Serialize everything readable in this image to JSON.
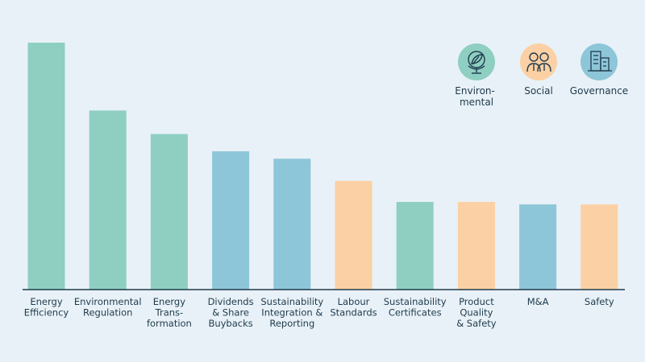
{
  "chart_data": {
    "type": "bar",
    "categories": [
      [
        "Energy",
        "Efficiency"
      ],
      [
        "Environmental",
        "Regulation"
      ],
      [
        "Energy",
        "Trans-",
        "formation"
      ],
      [
        "Dividends",
        "& Share",
        "Buybacks"
      ],
      [
        "Sustainability",
        "Integration &",
        "Reporting"
      ],
      [
        "Labour",
        "Standards"
      ],
      [
        "Sustainability",
        "Certificates"
      ],
      [
        "Product",
        "Quality",
        "& Safety"
      ],
      [
        "M&A"
      ],
      [
        "Safety"
      ]
    ],
    "values": [
      100,
      72.5,
      63,
      56,
      53,
      44,
      35.5,
      35.5,
      34.5,
      34.5
    ],
    "groups": [
      "environmental",
      "environmental",
      "environmental",
      "governance",
      "governance",
      "social",
      "environmental",
      "social",
      "governance",
      "social"
    ],
    "ylim": [
      0,
      100
    ],
    "grid": false,
    "legend_position": "top-right"
  },
  "legend": [
    {
      "key": "environmental",
      "label_lines": [
        "Environ-",
        "mental"
      ],
      "icon": "globe-leaf-icon",
      "color": "#8ecfc2"
    },
    {
      "key": "social",
      "label_lines": [
        "Social"
      ],
      "icon": "people-icon",
      "color": "#fbd0a4"
    },
    {
      "key": "governance",
      "label_lines": [
        "Governance"
      ],
      "icon": "building-icon",
      "color": "#8dc6d8"
    }
  ],
  "colors": {
    "background": "#e8f1f7",
    "axis": "#1f3a4d",
    "text": "#1f3a4d"
  }
}
